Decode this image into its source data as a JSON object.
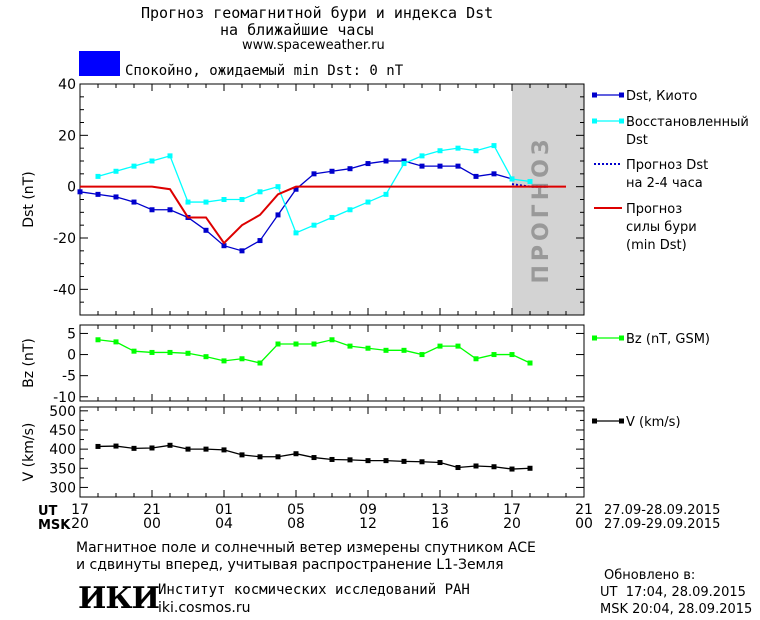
{
  "header": {
    "title_line1": "Прогноз геомагнитной бури и индекса Dst",
    "title_line2": "на ближайшие часы",
    "url": "www.spaceweather.ru",
    "status_text": "Спокойно, ожидаемый min Dst: 0 nT",
    "status_color": "#0000ff"
  },
  "footer": {
    "note_line1": "Магнитное поле и солнечный ветер измерены спутником ACE",
    "note_line2": "и сдвинуты вперед, учитывая распространение L1-Земля",
    "logo_text": "ИКИ",
    "institute_name": "Институт космических исследований РАН",
    "institute_url": "iki.cosmos.ru",
    "updated_label": "Обновлено в:",
    "updated_ut": "UT  17:04, 28.09.2015",
    "updated_msk": "MSK 20:04, 28.09.2015"
  },
  "chart_data": {
    "type": "line",
    "x_axis": {
      "ut_label": "UT",
      "msk_label": "MSK",
      "ut_ticks": [
        "17",
        "21",
        "01",
        "05",
        "09",
        "13",
        "17",
        "21"
      ],
      "msk_ticks": [
        "20",
        "00",
        "04",
        "08",
        "12",
        "16",
        "20",
        "00"
      ],
      "ut_range_text": "27.09-28.09.2015",
      "msk_range_text": "27.09-29.09.2015",
      "x_hours_range": [
        0,
        28
      ]
    },
    "forecast_band": {
      "label": "прогноз",
      "x_hours": [
        24,
        28
      ],
      "color": "#d3d3d3"
    },
    "panels": [
      {
        "id": "dst",
        "ylabel": "Dst (nT)",
        "ylim": [
          -50,
          40
        ],
        "yticks": [
          40,
          20,
          0,
          -20,
          -40
        ],
        "series": [
          {
            "name": "Dst, Киото",
            "color": "#0000cc",
            "marker": "square",
            "x": [
              0,
              1,
              2,
              3,
              4,
              5,
              6,
              7,
              8,
              9,
              10,
              11,
              12,
              13,
              14,
              15,
              16,
              17,
              18,
              19,
              20,
              21,
              22,
              23,
              24
            ],
            "y": [
              -2,
              -3,
              -4,
              -6,
              -9,
              -9,
              -12,
              -17,
              -23,
              -25,
              -21,
              -11,
              -1,
              5,
              6,
              7,
              9,
              10,
              10,
              8,
              8,
              8,
              4,
              5,
              3
            ]
          },
          {
            "name": "Восстановленный Dst",
            "color": "#00ffff",
            "marker": "square",
            "x": [
              1,
              2,
              3,
              4,
              5,
              6,
              7,
              8,
              9,
              10,
              11,
              12,
              13,
              14,
              15,
              16,
              17,
              18,
              19,
              20,
              21,
              22,
              23,
              24,
              25
            ],
            "y": [
              4,
              6,
              8,
              10,
              12,
              -6,
              -6,
              -5,
              -5,
              -2,
              0,
              -18,
              -15,
              -12,
              -9,
              -6,
              -3,
              9,
              12,
              14,
              15,
              14,
              16,
              3,
              2
            ]
          },
          {
            "name": "Прогноз Dst на 2-4 часа",
            "color": "#0000cc",
            "marker": "none",
            "dash": "2,2",
            "x": [
              24,
              25,
              26
            ],
            "y": [
              1,
              0,
              0
            ]
          },
          {
            "name": "Прогноз силы бури (min Dst)",
            "color": "#dd0000",
            "marker": "none",
            "x": [
              0,
              4,
              5,
              6,
              7,
              8,
              9,
              10,
              11,
              12,
              13,
              14,
              15,
              16,
              17,
              18,
              19,
              20,
              21,
              22,
              23,
              24,
              25,
              26,
              27
            ],
            "y": [
              0,
              0,
              -1,
              -12,
              -12,
              -22,
              -15,
              -11,
              -3,
              0,
              0,
              0,
              0,
              0,
              0,
              0,
              0,
              0,
              0,
              0,
              0,
              0,
              0,
              0,
              0
            ]
          }
        ],
        "legend": [
          "Dst, Киото",
          "Восстановленный Dst",
          "Прогноз Dst на 2-4 часа",
          "Прогноз силы бури (min Dst)"
        ],
        "legend_lines": [
          [
            "Dst, Киото"
          ],
          [
            "Восстановленный",
            "Dst"
          ],
          [
            "Прогноз Dst",
            "на 2-4 часа"
          ],
          [
            "Прогноз",
            "силы бури",
            "(min Dst)"
          ]
        ]
      },
      {
        "id": "bz",
        "ylabel": "Bz (nT)",
        "ylim": [
          -11,
          7
        ],
        "yticks": [
          5,
          0,
          -5,
          -10
        ],
        "series": [
          {
            "name": "Bz (nT, GSM)",
            "color": "#00ff00",
            "marker": "square",
            "x": [
              1,
              2,
              3,
              4,
              5,
              6,
              7,
              8,
              9,
              10,
              11,
              12,
              13,
              14,
              15,
              16,
              17,
              18,
              19,
              20,
              21,
              22,
              23,
              24,
              25
            ],
            "y": [
              3.5,
              3,
              0.8,
              0.5,
              0.5,
              0.3,
              -0.5,
              -1.5,
              -1,
              -2,
              2.5,
              2.5,
              2.5,
              3.5,
              2,
              1.5,
              1,
              1,
              0,
              2,
              2,
              -1,
              0,
              0,
              -2
            ]
          }
        ],
        "legend": [
          "Bz (nT, GSM)"
        ]
      },
      {
        "id": "v",
        "ylabel": "V (km/s)",
        "ylim": [
          275,
          510
        ],
        "yticks": [
          500,
          450,
          400,
          350,
          300
        ],
        "minor_ticks": [
          475,
          425,
          375,
          325
        ],
        "series": [
          {
            "name": "V (km/s)",
            "color": "#000000",
            "marker": "square",
            "x": [
              1,
              2,
              3,
              4,
              5,
              6,
              7,
              8,
              9,
              10,
              11,
              12,
              13,
              14,
              15,
              16,
              17,
              18,
              19,
              20,
              21,
              22,
              23,
              24,
              25
            ],
            "y": [
              407,
              408,
              402,
              403,
              410,
              400,
              400,
              398,
              385,
              380,
              380,
              388,
              378,
              373,
              372,
              370,
              370,
              368,
              367,
              365,
              352,
              356,
              354,
              348,
              350
            ]
          }
        ],
        "legend": [
          "V (km/s)"
        ]
      }
    ]
  }
}
